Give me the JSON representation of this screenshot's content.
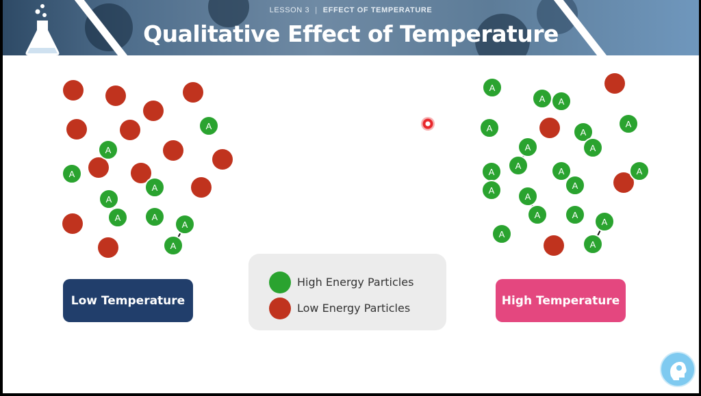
{
  "header": {
    "lesson": "LESSON 3",
    "separator": "|",
    "topic": "EFFECT OF TEMPERATURE",
    "title": "Qualitative Effect of Temperature"
  },
  "particle_label": "A",
  "panels": {
    "low": {
      "label": "Low Temperature",
      "color": "#213e6b"
    },
    "high": {
      "label": "High Temperature",
      "color": "#e4477f"
    }
  },
  "legend": {
    "items": [
      {
        "label": "High Energy Particles",
        "color": "#2aa32f"
      },
      {
        "label": "Low Energy Particles",
        "color": "#c0331e"
      }
    ]
  },
  "icons": [
    "flask-icon",
    "cursor-indicator",
    "assistant-head-icon"
  ]
}
